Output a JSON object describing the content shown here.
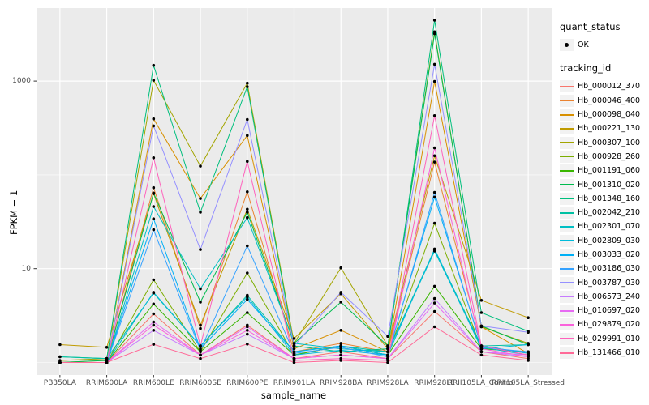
{
  "figure": {
    "background": "#FFFFFF",
    "panel_background": "#EBEBEB",
    "grid_color": "#FFFFFF",
    "tick_mark_color": "#333333",
    "tick_label_color": "#4D4D4D"
  },
  "axes": {
    "x": {
      "title": "sample_name"
    },
    "y": {
      "title": "FPKM + 1",
      "tick_labels": [
        "1000",
        "10"
      ],
      "tick_values": [
        1000,
        10
      ]
    }
  },
  "legend": {
    "quant_status": {
      "title": "quant_status",
      "items": [
        {
          "label": "OK",
          "symbol": "point"
        }
      ]
    },
    "tracking_id": {
      "title": "tracking_id"
    }
  },
  "chart_data": {
    "type": "line",
    "title": "",
    "xlabel": "sample_name",
    "ylabel": "FPKM + 1",
    "yscale": "log10",
    "ylim": [
      1,
      6000
    ],
    "y_major_ticks": [
      10,
      1000
    ],
    "y_minor_ticks": [
      1,
      100
    ],
    "grid": true,
    "legend_position": "right",
    "point_color": "#000000",
    "x_categories": [
      "PB350LA",
      "RRIM600LA",
      "RRIM600LE",
      "RRIM600SE",
      "RRIM600PE",
      "RRIM901LA",
      "RRIM928BA",
      "RRIM928LA",
      "RRIM928LE",
      "RRII105LA_Control",
      "RRII105LA_Stressed"
    ],
    "series": [
      {
        "name": "Hb_000012_370",
        "color": "#F8766D",
        "values": [
          1.0,
          1.0,
          3.3,
          1.2,
          2.5,
          1.1,
          1.3,
          1.1,
          3.5,
          1.3,
          1.1
        ]
      },
      {
        "name": "Hb_000046_400",
        "color": "#EA8331",
        "values": [
          1.0,
          1.05,
          73,
          2.3,
          66,
          1.3,
          1.6,
          1.3,
          137,
          1.5,
          1.25
        ]
      },
      {
        "name": "Hb_000098_040",
        "color": "#D89000",
        "values": [
          1.0,
          1.0,
          396,
          56,
          263,
          1.4,
          2.2,
          1.3,
          990,
          2.4,
          1.25
        ]
      },
      {
        "name": "Hb_000221_130",
        "color": "#C09B00",
        "values": [
          1.55,
          1.45,
          63,
          2.5,
          43,
          1.8,
          5.4,
          1.4,
          160,
          4.6,
          3.0
        ]
      },
      {
        "name": "Hb_000307_100",
        "color": "#A3A500",
        "values": [
          1.05,
          1.1,
          1020,
          124,
          950,
          1.6,
          10.2,
          1.5,
          3350,
          2.4,
          1.6
        ]
      },
      {
        "name": "Hb_000928_260",
        "color": "#7CAE00",
        "values": [
          1.0,
          1.0,
          7.6,
          1.3,
          9.0,
          1.2,
          1.5,
          1.2,
          30.5,
          1.4,
          1.3
        ]
      },
      {
        "name": "Hb_001191_060",
        "color": "#39B600",
        "values": [
          1.0,
          1.0,
          4.2,
          1.3,
          3.4,
          1.2,
          1.5,
          1.2,
          6.5,
          1.4,
          1.3
        ]
      },
      {
        "name": "Hb_001310_020",
        "color": "#00BB4E",
        "values": [
          1.0,
          1.05,
          64,
          4.4,
          40,
          1.6,
          4.4,
          1.5,
          3200,
          2.45,
          1.55
        ]
      },
      {
        "name": "Hb_001348_160",
        "color": "#00BF7D",
        "values": [
          1.15,
          1.1,
          1470,
          40,
          870,
          1.5,
          1.3,
          1.4,
          4450,
          3.4,
          2.15
        ]
      },
      {
        "name": "Hb_002042_210",
        "color": "#00C1A3",
        "values": [
          1.15,
          1.1,
          5.5,
          1.5,
          5.2,
          1.3,
          1.5,
          1.3,
          16,
          1.5,
          1.55
        ]
      },
      {
        "name": "Hb_002301_070",
        "color": "#00BFC4",
        "values": [
          1.0,
          1.0,
          46,
          6.1,
          35,
          1.6,
          1.4,
          1.3,
          15.4,
          1.45,
          1.2
        ]
      },
      {
        "name": "Hb_002809_030",
        "color": "#00BBDA",
        "values": [
          1.0,
          1.0,
          5.6,
          1.5,
          5.0,
          1.2,
          1.35,
          1.2,
          16.2,
          1.4,
          1.55
        ]
      },
      {
        "name": "Hb_003033_020",
        "color": "#00B0F6",
        "values": [
          1.0,
          1.0,
          34,
          1.4,
          4.7,
          1.3,
          1.5,
          1.2,
          58,
          1.5,
          1.25
        ]
      },
      {
        "name": "Hb_003186_030",
        "color": "#35A2FF",
        "values": [
          1.0,
          1.0,
          26,
          1.35,
          17.5,
          1.25,
          1.45,
          1.15,
          65,
          1.45,
          1.3
        ]
      },
      {
        "name": "Hb_003787_030",
        "color": "#9590FF",
        "values": [
          1.0,
          1.0,
          333,
          16,
          390,
          1.5,
          5.6,
          1.9,
          1510,
          2.45,
          2.1
        ]
      },
      {
        "name": "Hb_006573_240",
        "color": "#C77CFF",
        "values": [
          1.0,
          1.0,
          2.2,
          1.2,
          2.0,
          1.1,
          1.2,
          1.1,
          4.8,
          1.3,
          1.15
        ]
      },
      {
        "name": "Hb_010697_020",
        "color": "#E76BF3",
        "values": [
          1.0,
          1.0,
          2.7,
          1.2,
          2.4,
          1.1,
          1.2,
          1.1,
          4.3,
          1.3,
          1.2
        ]
      },
      {
        "name": "Hb_029879_020",
        "color": "#FA62DB",
        "values": [
          1.0,
          1.0,
          2.5,
          1.2,
          2.2,
          1.1,
          1.2,
          1.1,
          194,
          1.4,
          1.15
        ]
      },
      {
        "name": "Hb_029991_010",
        "color": "#FF62BC",
        "values": [
          1.0,
          1.0,
          152,
          1.5,
          139,
          1.05,
          1.1,
          1.05,
          428,
          1.5,
          1.2
        ]
      },
      {
        "name": "Hb_131466_010",
        "color": "#FF6A98",
        "values": [
          1.0,
          1.0,
          1.56,
          1.1,
          1.57,
          1.0,
          1.05,
          1.0,
          2.4,
          1.2,
          1.05
        ]
      }
    ]
  }
}
